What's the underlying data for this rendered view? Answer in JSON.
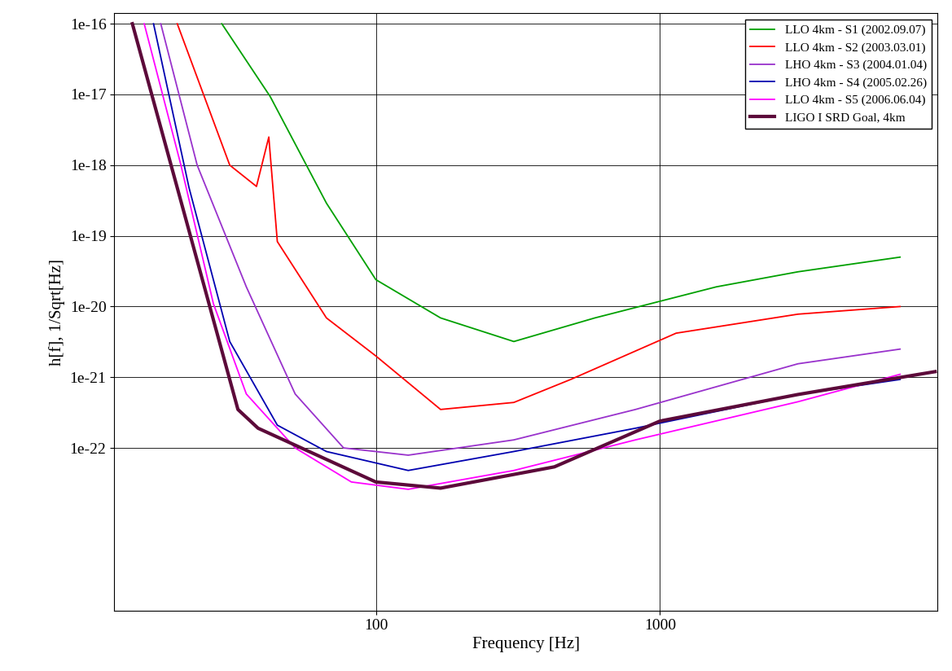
{
  "chart_data": {
    "type": "line",
    "x_label": "Frequency [Hz]",
    "y_label": "h[f], 1/Sqrt[Hz]",
    "log": true,
    "grid": true,
    "legend": "upper right",
    "xlim": [
      12,
      9500
    ],
    "xticks": [
      100,
      1000
    ],
    "ylim": [
      5e-25,
      1.4e-16
    ],
    "yticks": [
      {
        "value": 1e-16,
        "label": "1e-16"
      },
      {
        "value": 1e-17,
        "label": "1e-17"
      },
      {
        "value": 1e-18,
        "label": "1e-18"
      },
      {
        "value": 1e-19,
        "label": "1e-19"
      },
      {
        "value": 1e-20,
        "label": "1e-20"
      },
      {
        "value": 1e-21,
        "label": "1e-21"
      },
      {
        "value": 1e-22,
        "label": "1e-22"
      }
    ],
    "series": [
      {
        "name": "LLO 4km - S1 (2002.09.07)",
        "color": "#00a000",
        "x": [
          28.7,
          42.5,
          67,
          100,
          169,
          306,
          590,
          1580,
          3060,
          7000
        ],
        "values": [
          1e-16,
          9.3e-18,
          2.9e-19,
          2.4e-20,
          6.9e-21,
          3.2e-21,
          6.9e-21,
          1.9e-20,
          3.1e-20,
          5e-20
        ]
      },
      {
        "name": "LLO 4km - S2 (2003.03.01)",
        "color": "#ff0000",
        "x": [
          20,
          30.6,
          38,
          42,
          45,
          67,
          100,
          169,
          306,
          485,
          1140,
          3060,
          7000
        ],
        "values": [
          1e-16,
          1e-18,
          5e-19,
          2.5e-18,
          8.3e-20,
          6.9e-21,
          2e-21,
          3.5e-22,
          4.4e-22,
          9.3e-22,
          4.2e-21,
          7.8e-21,
          1e-20
        ]
      },
      {
        "name": "LHO 4km - S3 (2004.01.04)",
        "color": "#9932cc",
        "x": [
          17.5,
          23.5,
          35,
          52,
          77,
          130,
          306,
          820,
          3060,
          7000
        ],
        "values": [
          1e-16,
          1e-18,
          1.9e-20,
          5.8e-22,
          1e-22,
          7.9e-23,
          1.3e-22,
          3.5e-22,
          1.55e-21,
          2.5e-21
        ]
      },
      {
        "name": "LHO 4km - S4 (2005.02.26)",
        "color": "#0000b0",
        "x": [
          16.5,
          22,
          30.6,
          45,
          67,
          130,
          306,
          820,
          3060,
          7000
        ],
        "values": [
          1e-16,
          4.8e-19,
          3.2e-21,
          2.1e-22,
          8.9e-23,
          4.8e-23,
          8.9e-23,
          1.9e-22,
          5.7e-22,
          9.3e-22
        ]
      },
      {
        "name": "LLO 4km - S5 (2006.06.04)",
        "color": "#ff00ff",
        "x": [
          15.3,
          20.6,
          26.8,
          35,
          52,
          82,
          130,
          306,
          820,
          3060,
          7000
        ],
        "values": [
          1e-16,
          1e-18,
          1.1e-20,
          5.8e-22,
          1e-22,
          3.3e-23,
          2.6e-23,
          4.8e-23,
          1.3e-22,
          4.5e-22,
          1.1e-21
        ]
      },
      {
        "name": "LIGO I SRD Goal, 4km",
        "color": "#5c0a3a",
        "x": [
          13.9,
          32.7,
          38.5,
          100,
          169,
          425,
          1000,
          3060,
          9300
        ],
        "values": [
          1e-16,
          3.5e-22,
          1.9e-22,
          3.3e-23,
          2.7e-23,
          5.4e-23,
          2.4e-22,
          5.7e-22,
          1.2e-21
        ]
      }
    ]
  }
}
